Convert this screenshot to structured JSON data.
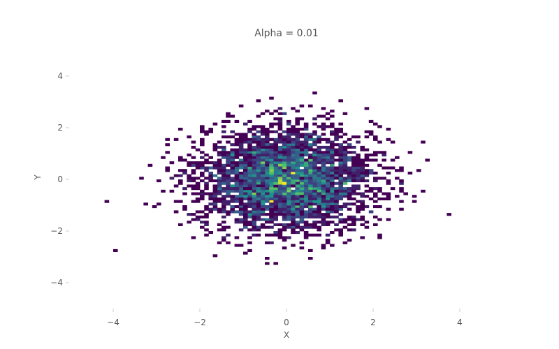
{
  "chart_data": {
    "type": "heatmap",
    "subtype": "2d-histogram",
    "title": "Alpha = 0.01",
    "xlabel": "X",
    "ylabel": "Y",
    "xlim": [
      -5,
      5
    ],
    "ylim": [
      -5,
      5
    ],
    "xticks": [
      -4,
      -2,
      0,
      2,
      4
    ],
    "yticks": [
      -4,
      -2,
      0,
      2,
      4
    ],
    "xtick_labels": [
      "−4",
      "−2",
      "0",
      "2",
      "4"
    ],
    "ytick_labels": [
      "−4",
      "−2",
      "0",
      "2",
      "4"
    ],
    "bins": 100,
    "grid": false,
    "legend": "none",
    "colorscale": "viridis",
    "distribution": {
      "kind": "bivariate-normal",
      "mean": [
        0,
        0
      ],
      "std": [
        1,
        1
      ]
    },
    "colors": {
      "low": "#440154",
      "mid_low": "#31688e",
      "mid": "#35b779",
      "high": "#fde725",
      "text": "#555555",
      "tick": "#cccccc"
    }
  }
}
